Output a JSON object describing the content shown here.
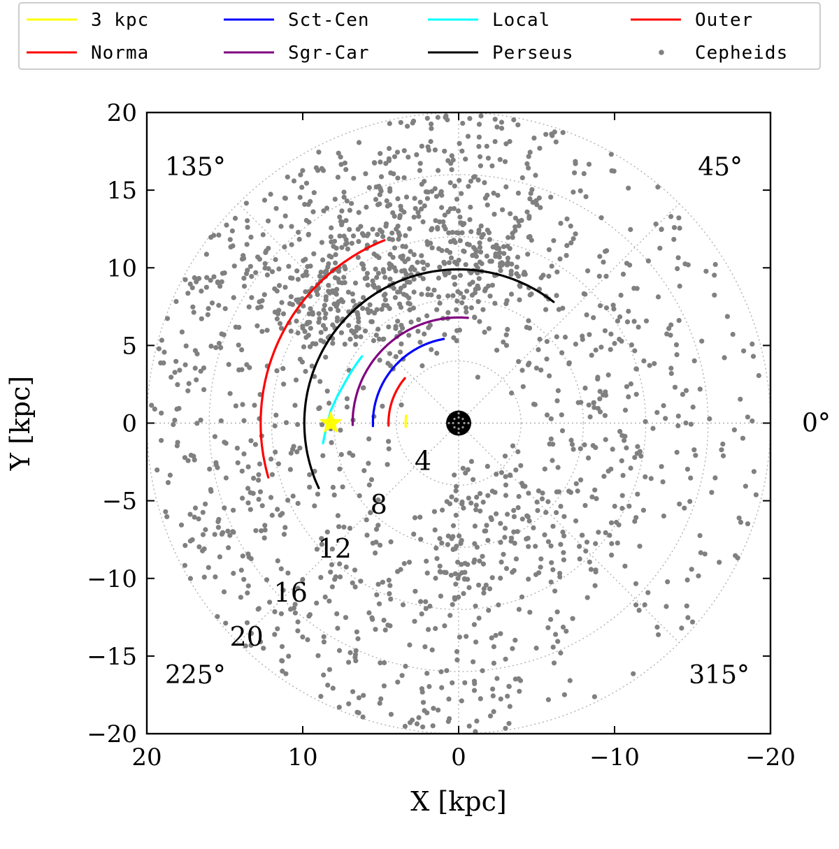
{
  "chart_data": {
    "type": "scatter",
    "title": "",
    "xlabel": "X [kpc]",
    "ylabel": "Y [kpc]",
    "xlim": [
      20,
      -20
    ],
    "ylim": [
      -20,
      20
    ],
    "x_ticks": [
      20,
      10,
      0,
      -10,
      -20
    ],
    "x_tick_labels": [
      "20",
      "10",
      "0",
      "−10",
      "−20"
    ],
    "y_ticks": [
      20,
      15,
      10,
      5,
      0,
      -5,
      -10,
      -15,
      -20
    ],
    "y_tick_labels": [
      "20",
      "15",
      "10",
      "5",
      "0",
      "−5",
      "−10",
      "−15",
      "−20"
    ],
    "polar_grid": {
      "rings": [
        4,
        8,
        12,
        16,
        20
      ],
      "ring_labels": [
        "4",
        "8",
        "12",
        "16",
        "20"
      ],
      "ring_label_angle_deg": 315,
      "spokes_deg": [
        0,
        45,
        90,
        135,
        180,
        225,
        270,
        315
      ],
      "angle_labels": [
        {
          "angle": 0,
          "text": "0°"
        },
        {
          "angle": 45,
          "text": "45°"
        },
        {
          "angle": 135,
          "text": "135°"
        },
        {
          "angle": 225,
          "text": "225°"
        },
        {
          "angle": 315,
          "text": "315°"
        }
      ]
    },
    "legend": {
      "position": "top",
      "entries": [
        {
          "name": "3 kpc",
          "color": "#ffff00",
          "kind": "line"
        },
        {
          "name": "Sct-Cen",
          "color": "#0000ff",
          "kind": "line"
        },
        {
          "name": "Local",
          "color": "#00ffff",
          "kind": "line"
        },
        {
          "name": "Outer",
          "color": "#ff0000",
          "kind": "line"
        },
        {
          "name": "Norma",
          "color": "#ff0000",
          "kind": "line"
        },
        {
          "name": "Sgr-Car",
          "color": "#800080",
          "kind": "line"
        },
        {
          "name": "Perseus",
          "color": "#000000",
          "kind": "line"
        },
        {
          "name": "Cepheids",
          "color": "#808080",
          "kind": "marker"
        }
      ]
    },
    "series": [
      {
        "name": "3 kpc",
        "color": "#ffff00",
        "radius": 3.4,
        "theta_deg": [
          -4,
          8
        ]
      },
      {
        "name": "Norma",
        "color": "#ff0000",
        "radius": 4.5,
        "theta_deg": [
          -2,
          40
        ]
      },
      {
        "name": "Sct-Cen",
        "color": "#0000ff",
        "radius": 5.5,
        "theta_deg": [
          -2,
          80
        ]
      },
      {
        "name": "Sgr-Car",
        "color": "#800080",
        "radius": 6.8,
        "theta_deg": [
          -1,
          95
        ]
      },
      {
        "name": "Local",
        "color": "#00ffff",
        "x": [
          8.7,
          8.5,
          8.2,
          7.8,
          7.3,
          6.9,
          6.5,
          6.2
        ],
        "y": [
          -1.3,
          -0.3,
          0.8,
          1.7,
          2.6,
          3.3,
          3.9,
          4.3
        ]
      },
      {
        "name": "Perseus",
        "color": "#000000",
        "radius": 9.9,
        "theta_deg": [
          -25,
          128
        ]
      },
      {
        "name": "Outer",
        "color": "#ff0000",
        "radius": 12.7,
        "theta_deg": [
          -16,
          68
        ]
      }
    ],
    "cepheids": {
      "name": "Cepheids",
      "color": "#808080",
      "count": 1800,
      "note": "positions generated from the visible spatial distribution"
    },
    "sun": {
      "x": 8.2,
      "y": 0.0,
      "color": "#ffff00"
    },
    "galactic_center": {
      "x": 0.0,
      "y": 0.0,
      "color": "#000000"
    }
  }
}
